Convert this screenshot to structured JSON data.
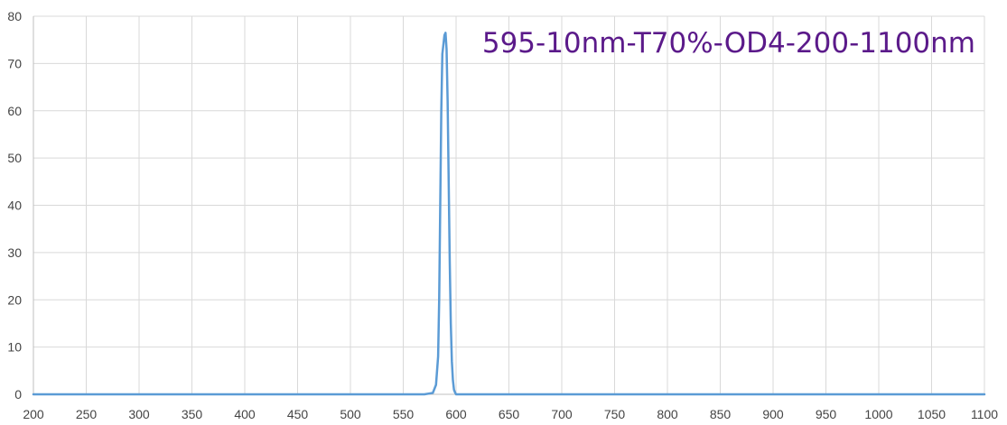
{
  "chart_data": {
    "type": "line",
    "title": "595-10nm-T70%-OD4-200-1100nm",
    "xlabel": "",
    "ylabel": "",
    "xlim": [
      200,
      1100
    ],
    "ylim": [
      0,
      80
    ],
    "x_ticks": [
      200,
      250,
      300,
      350,
      400,
      450,
      500,
      550,
      600,
      650,
      700,
      750,
      800,
      850,
      900,
      950,
      1000,
      1050,
      1100
    ],
    "y_ticks": [
      0,
      10,
      20,
      30,
      40,
      50,
      60,
      70,
      80
    ],
    "grid": true,
    "legend": "none",
    "series": [
      {
        "color": "#5b9bd5",
        "x": [
          200,
          570,
          578,
          581,
          583,
          584,
          585,
          586,
          587,
          588,
          589,
          590,
          591,
          592,
          593,
          594,
          595,
          596,
          597,
          598,
          599,
          600,
          605,
          1100
        ],
        "y": [
          0,
          0,
          0.3,
          2,
          8,
          20,
          40,
          60,
          72,
          74,
          76,
          76.5,
          73,
          62,
          45,
          28,
          15,
          7,
          3,
          1,
          0.4,
          0,
          0,
          0
        ]
      }
    ],
    "colors": {
      "title": "#5b1a8a",
      "grid": "#d9d9d9",
      "axis": "#bfbfbf"
    }
  }
}
